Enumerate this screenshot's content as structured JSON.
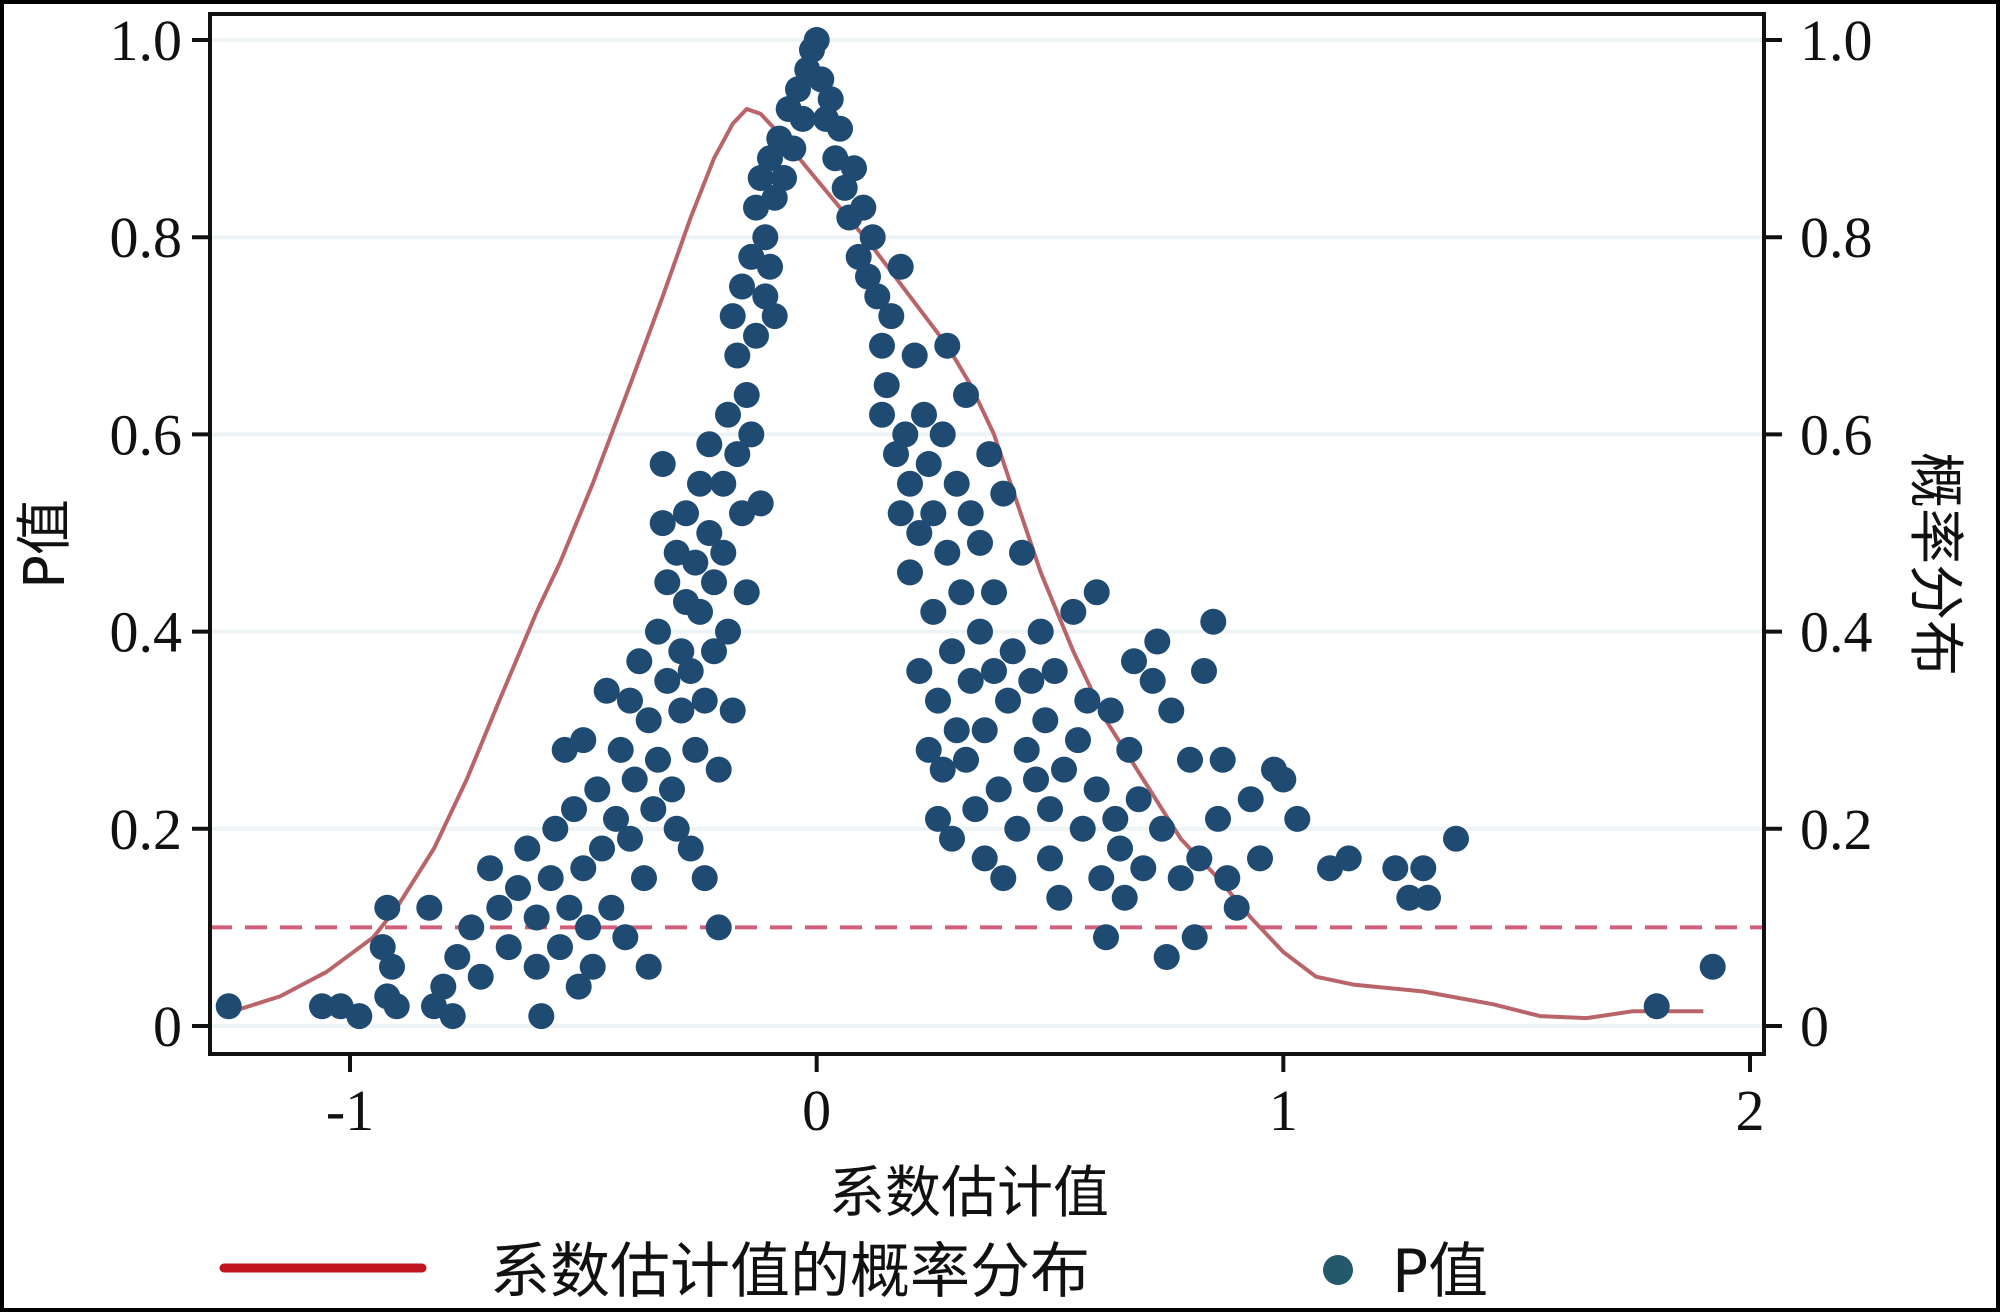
{
  "chart_data": {
    "type": "scatter",
    "xlabel": "系数估计值",
    "ylabel_left": "P值",
    "ylabel_right": "概率分布",
    "xlim": [
      -1.3,
      2.03
    ],
    "ylim": [
      0,
      1.0
    ],
    "x_ticks": [
      {
        "value": -1,
        "label": "-1"
      },
      {
        "value": 0,
        "label": "0"
      },
      {
        "value": 1,
        "label": "1"
      },
      {
        "value": 2,
        "label": "2"
      }
    ],
    "y_ticks": [
      {
        "value": 0,
        "label": "0"
      },
      {
        "value": 0.2,
        "label": "0.2"
      },
      {
        "value": 0.4,
        "label": "0.4"
      },
      {
        "value": 0.6,
        "label": "0.6"
      },
      {
        "value": 0.8,
        "label": "0.8"
      },
      {
        "value": 1.0,
        "label": "1.0"
      }
    ],
    "grid": true,
    "reference_line": {
      "y": 0.1,
      "style": "dashed",
      "color": "#d0607a"
    },
    "series": [
      {
        "name": "系数估计值的概率分布",
        "kind": "line",
        "color": "#b86468",
        "points": [
          [
            -1.25,
            0.015
          ],
          [
            -1.15,
            0.03
          ],
          [
            -1.05,
            0.055
          ],
          [
            -0.95,
            0.09
          ],
          [
            -0.9,
            0.12
          ],
          [
            -0.82,
            0.18
          ],
          [
            -0.75,
            0.25
          ],
          [
            -0.68,
            0.33
          ],
          [
            -0.6,
            0.42
          ],
          [
            -0.55,
            0.47
          ],
          [
            -0.48,
            0.55
          ],
          [
            -0.4,
            0.65
          ],
          [
            -0.33,
            0.74
          ],
          [
            -0.27,
            0.82
          ],
          [
            -0.22,
            0.88
          ],
          [
            -0.18,
            0.915
          ],
          [
            -0.15,
            0.93
          ],
          [
            -0.12,
            0.925
          ],
          [
            -0.08,
            0.905
          ],
          [
            -0.02,
            0.87
          ],
          [
            0.05,
            0.83
          ],
          [
            0.12,
            0.79
          ],
          [
            0.2,
            0.74
          ],
          [
            0.28,
            0.69
          ],
          [
            0.33,
            0.65
          ],
          [
            0.38,
            0.6
          ],
          [
            0.43,
            0.53
          ],
          [
            0.48,
            0.46
          ],
          [
            0.55,
            0.38
          ],
          [
            0.62,
            0.31
          ],
          [
            0.7,
            0.25
          ],
          [
            0.78,
            0.19
          ],
          [
            0.86,
            0.15
          ],
          [
            0.93,
            0.11
          ],
          [
            1.0,
            0.075
          ],
          [
            1.07,
            0.05
          ],
          [
            1.15,
            0.042
          ],
          [
            1.3,
            0.035
          ],
          [
            1.45,
            0.022
          ],
          [
            1.55,
            0.01
          ],
          [
            1.65,
            0.008
          ],
          [
            1.75,
            0.015
          ],
          [
            1.9,
            0.015
          ]
        ]
      },
      {
        "name": "P值",
        "kind": "scatter",
        "color": "#1f4a72",
        "points": [
          [
            -1.26,
            0.02
          ],
          [
            -1.06,
            0.02
          ],
          [
            -1.02,
            0.02
          ],
          [
            -0.98,
            0.01
          ],
          [
            -0.92,
            0.12
          ],
          [
            -0.92,
            0.03
          ],
          [
            -0.9,
            0.02
          ],
          [
            -0.93,
            0.08
          ],
          [
            -0.91,
            0.06
          ],
          [
            -0.83,
            0.12
          ],
          [
            -0.82,
            0.02
          ],
          [
            -0.8,
            0.04
          ],
          [
            -0.78,
            0.01
          ],
          [
            -0.77,
            0.07
          ],
          [
            -0.74,
            0.1
          ],
          [
            -0.72,
            0.05
          ],
          [
            -0.7,
            0.16
          ],
          [
            -0.68,
            0.12
          ],
          [
            -0.66,
            0.08
          ],
          [
            -0.64,
            0.14
          ],
          [
            -0.62,
            0.18
          ],
          [
            -0.6,
            0.06
          ],
          [
            -0.6,
            0.11
          ],
          [
            -0.59,
            0.01
          ],
          [
            -0.57,
            0.15
          ],
          [
            -0.56,
            0.2
          ],
          [
            -0.55,
            0.08
          ],
          [
            -0.54,
            0.28
          ],
          [
            -0.53,
            0.12
          ],
          [
            -0.52,
            0.22
          ],
          [
            -0.51,
            0.04
          ],
          [
            -0.5,
            0.16
          ],
          [
            -0.5,
            0.29
          ],
          [
            -0.49,
            0.1
          ],
          [
            -0.48,
            0.06
          ],
          [
            -0.47,
            0.24
          ],
          [
            -0.46,
            0.18
          ],
          [
            -0.45,
            0.34
          ],
          [
            -0.44,
            0.12
          ],
          [
            -0.43,
            0.21
          ],
          [
            -0.42,
            0.28
          ],
          [
            -0.41,
            0.09
          ],
          [
            -0.4,
            0.33
          ],
          [
            -0.4,
            0.19
          ],
          [
            -0.39,
            0.25
          ],
          [
            -0.38,
            0.37
          ],
          [
            -0.37,
            0.15
          ],
          [
            -0.36,
            0.06
          ],
          [
            -0.36,
            0.31
          ],
          [
            -0.35,
            0.22
          ],
          [
            -0.34,
            0.4
          ],
          [
            -0.34,
            0.27
          ],
          [
            -0.33,
            0.51
          ],
          [
            -0.33,
            0.57
          ],
          [
            -0.32,
            0.35
          ],
          [
            -0.32,
            0.45
          ],
          [
            -0.31,
            0.24
          ],
          [
            -0.3,
            0.48
          ],
          [
            -0.3,
            0.2
          ],
          [
            -0.29,
            0.38
          ],
          [
            -0.29,
            0.32
          ],
          [
            -0.28,
            0.52
          ],
          [
            -0.28,
            0.43
          ],
          [
            -0.27,
            0.18
          ],
          [
            -0.27,
            0.36
          ],
          [
            -0.26,
            0.47
          ],
          [
            -0.26,
            0.28
          ],
          [
            -0.25,
            0.55
          ],
          [
            -0.25,
            0.42
          ],
          [
            -0.24,
            0.33
          ],
          [
            -0.24,
            0.15
          ],
          [
            -0.23,
            0.5
          ],
          [
            -0.23,
            0.59
          ],
          [
            -0.22,
            0.45
          ],
          [
            -0.22,
            0.38
          ],
          [
            -0.21,
            0.26
          ],
          [
            -0.21,
            0.1
          ],
          [
            -0.2,
            0.55
          ],
          [
            -0.2,
            0.48
          ],
          [
            -0.19,
            0.62
          ],
          [
            -0.19,
            0.4
          ],
          [
            -0.18,
            0.72
          ],
          [
            -0.18,
            0.32
          ],
          [
            -0.17,
            0.58
          ],
          [
            -0.17,
            0.68
          ],
          [
            -0.16,
            0.75
          ],
          [
            -0.16,
            0.52
          ],
          [
            -0.15,
            0.64
          ],
          [
            -0.15,
            0.44
          ],
          [
            -0.14,
            0.78
          ],
          [
            -0.14,
            0.6
          ],
          [
            -0.13,
            0.83
          ],
          [
            -0.13,
            0.7
          ],
          [
            -0.12,
            0.86
          ],
          [
            -0.12,
            0.53
          ],
          [
            -0.11,
            0.8
          ],
          [
            -0.11,
            0.74
          ],
          [
            -0.1,
            0.88
          ],
          [
            -0.1,
            0.77
          ],
          [
            -0.09,
            0.84
          ],
          [
            -0.09,
            0.72
          ],
          [
            -0.08,
            0.9
          ],
          [
            -0.07,
            0.86
          ],
          [
            -0.06,
            0.93
          ],
          [
            -0.05,
            0.89
          ],
          [
            -0.04,
            0.95
          ],
          [
            -0.03,
            0.92
          ],
          [
            -0.02,
            0.97
          ],
          [
            -0.01,
            0.99
          ],
          [
            0.0,
            1.0
          ],
          [
            0.01,
            0.96
          ],
          [
            0.02,
            0.92
          ],
          [
            0.03,
            0.94
          ],
          [
            0.04,
            0.88
          ],
          [
            0.05,
            0.91
          ],
          [
            0.06,
            0.85
          ],
          [
            0.07,
            0.82
          ],
          [
            0.08,
            0.87
          ],
          [
            0.09,
            0.78
          ],
          [
            0.1,
            0.83
          ],
          [
            0.11,
            0.76
          ],
          [
            0.12,
            0.8
          ],
          [
            0.13,
            0.74
          ],
          [
            0.14,
            0.69
          ],
          [
            0.14,
            0.62
          ],
          [
            0.15,
            0.65
          ],
          [
            0.16,
            0.72
          ],
          [
            0.17,
            0.58
          ],
          [
            0.18,
            0.77
          ],
          [
            0.18,
            0.52
          ],
          [
            0.19,
            0.6
          ],
          [
            0.2,
            0.55
          ],
          [
            0.2,
            0.46
          ],
          [
            0.21,
            0.68
          ],
          [
            0.22,
            0.5
          ],
          [
            0.22,
            0.36
          ],
          [
            0.23,
            0.62
          ],
          [
            0.24,
            0.57
          ],
          [
            0.24,
            0.28
          ],
          [
            0.25,
            0.52
          ],
          [
            0.25,
            0.42
          ],
          [
            0.26,
            0.33
          ],
          [
            0.26,
            0.21
          ],
          [
            0.27,
            0.6
          ],
          [
            0.27,
            0.26
          ],
          [
            0.28,
            0.48
          ],
          [
            0.28,
            0.69
          ],
          [
            0.29,
            0.38
          ],
          [
            0.29,
            0.19
          ],
          [
            0.3,
            0.55
          ],
          [
            0.3,
            0.3
          ],
          [
            0.31,
            0.44
          ],
          [
            0.32,
            0.64
          ],
          [
            0.32,
            0.27
          ],
          [
            0.33,
            0.52
          ],
          [
            0.33,
            0.35
          ],
          [
            0.34,
            0.22
          ],
          [
            0.35,
            0.49
          ],
          [
            0.35,
            0.4
          ],
          [
            0.36,
            0.3
          ],
          [
            0.36,
            0.17
          ],
          [
            0.37,
            0.58
          ],
          [
            0.38,
            0.44
          ],
          [
            0.38,
            0.36
          ],
          [
            0.39,
            0.24
          ],
          [
            0.4,
            0.54
          ],
          [
            0.4,
            0.15
          ],
          [
            0.41,
            0.33
          ],
          [
            0.42,
            0.38
          ],
          [
            0.43,
            0.2
          ],
          [
            0.44,
            0.48
          ],
          [
            0.45,
            0.28
          ],
          [
            0.46,
            0.35
          ],
          [
            0.47,
            0.25
          ],
          [
            0.48,
            0.4
          ],
          [
            0.49,
            0.31
          ],
          [
            0.5,
            0.22
          ],
          [
            0.5,
            0.17
          ],
          [
            0.51,
            0.36
          ],
          [
            0.52,
            0.13
          ],
          [
            0.53,
            0.26
          ],
          [
            0.55,
            0.42
          ],
          [
            0.56,
            0.29
          ],
          [
            0.57,
            0.2
          ],
          [
            0.58,
            0.33
          ],
          [
            0.6,
            0.44
          ],
          [
            0.6,
            0.24
          ],
          [
            0.61,
            0.15
          ],
          [
            0.62,
            0.09
          ],
          [
            0.63,
            0.32
          ],
          [
            0.64,
            0.21
          ],
          [
            0.65,
            0.18
          ],
          [
            0.66,
            0.13
          ],
          [
            0.67,
            0.28
          ],
          [
            0.68,
            0.37
          ],
          [
            0.69,
            0.23
          ],
          [
            0.7,
            0.16
          ],
          [
            0.72,
            0.35
          ],
          [
            0.73,
            0.39
          ],
          [
            0.74,
            0.2
          ],
          [
            0.75,
            0.07
          ],
          [
            0.76,
            0.32
          ],
          [
            0.78,
            0.15
          ],
          [
            0.8,
            0.27
          ],
          [
            0.81,
            0.09
          ],
          [
            0.82,
            0.17
          ],
          [
            0.83,
            0.36
          ],
          [
            0.85,
            0.41
          ],
          [
            0.86,
            0.21
          ],
          [
            0.87,
            0.27
          ],
          [
            0.88,
            0.15
          ],
          [
            0.9,
            0.12
          ],
          [
            0.93,
            0.23
          ],
          [
            0.95,
            0.17
          ],
          [
            0.98,
            0.26
          ],
          [
            1.0,
            0.25
          ],
          [
            1.03,
            0.21
          ],
          [
            1.1,
            0.16
          ],
          [
            1.14,
            0.17
          ],
          [
            1.24,
            0.16
          ],
          [
            1.27,
            0.13
          ],
          [
            1.3,
            0.16
          ],
          [
            1.31,
            0.13
          ],
          [
            1.37,
            0.19
          ],
          [
            1.8,
            0.02
          ],
          [
            1.92,
            0.06
          ]
        ]
      }
    ],
    "legend": {
      "placement": "bottom",
      "items": [
        "系数估计值的概率分布",
        "P值"
      ]
    }
  }
}
